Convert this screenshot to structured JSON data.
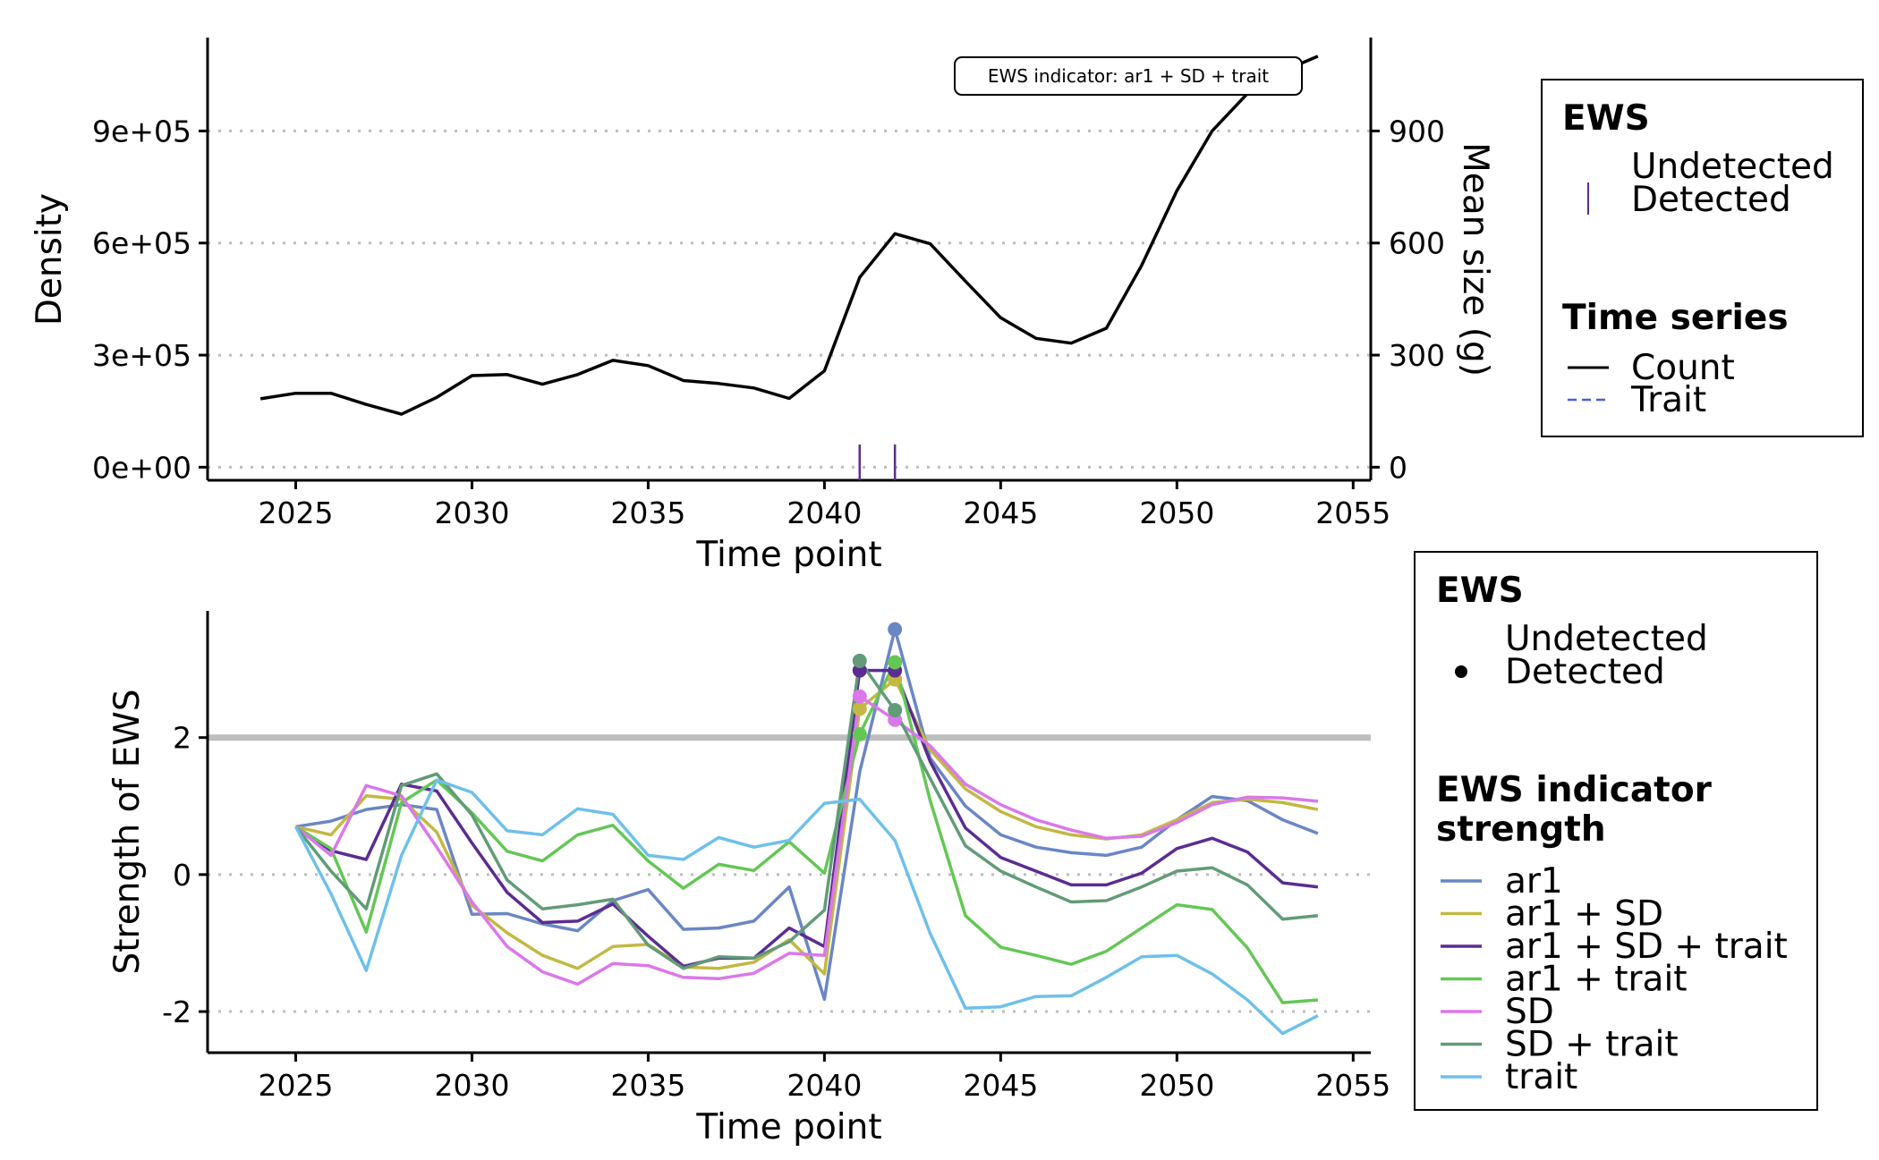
{
  "chart_data": [
    {
      "type": "line",
      "xlabel": "Time point",
      "ylabel": "Density",
      "ylabel_right": "Mean size (g)",
      "x_ticks": [
        2025,
        2030,
        2035,
        2040,
        2045,
        2050,
        2055
      ],
      "y_ticks": [
        "0e+00",
        "3e+05",
        "6e+05",
        "9e+05"
      ],
      "y_tick_values": [
        0,
        300000,
        600000,
        900000
      ],
      "y_right_ticks": [
        "0",
        "300",
        "600",
        "900"
      ],
      "xlim": [
        2022.5,
        2055.5
      ],
      "ylim": [
        -35000,
        1150000
      ],
      "annotation": "EWS indicator: ar1 + SD + trait",
      "series": [
        {
          "name": "Count",
          "color": "#000000",
          "x": [
            2024,
            2025,
            2026,
            2027,
            2028,
            2029,
            2030,
            2031,
            2032,
            2033,
            2034,
            2035,
            2036,
            2037,
            2038,
            2039,
            2040,
            2041,
            2042,
            2043,
            2044,
            2045,
            2046,
            2047,
            2048,
            2049,
            2050,
            2051,
            2052,
            2053,
            2054
          ],
          "values": [
            183000,
            198000,
            198000,
            168000,
            142000,
            187000,
            245000,
            248000,
            222000,
            248000,
            286000,
            272000,
            232000,
            224000,
            212000,
            184000,
            258000,
            508000,
            625000,
            598000,
            498000,
            400000,
            345000,
            332000,
            372000,
            540000,
            740000,
            900000,
            1000000,
            1060000,
            1100000
          ]
        }
      ],
      "detected_marks_x": [
        2041,
        2042
      ],
      "legend": [
        {
          "title": "EWS",
          "items": [
            "Undetected",
            "Detected"
          ]
        },
        {
          "title": "Time series",
          "items": [
            "Count",
            "Trait"
          ]
        }
      ]
    },
    {
      "type": "line",
      "xlabel": "Time point",
      "ylabel": "Strength of EWS",
      "x_ticks": [
        2025,
        2030,
        2035,
        2040,
        2045,
        2050,
        2055
      ],
      "y_ticks": [
        "-2",
        "0",
        "2"
      ],
      "y_tick_values": [
        -2,
        0,
        2
      ],
      "xlim": [
        2022.5,
        2055.5
      ],
      "ylim": [
        -2.6,
        3.85
      ],
      "threshold": 2,
      "x": [
        2025,
        2026,
        2027,
        2028,
        2029,
        2030,
        2031,
        2032,
        2033,
        2034,
        2035,
        2036,
        2037,
        2038,
        2039,
        2040,
        2041,
        2042,
        2043,
        2044,
        2045,
        2046,
        2047,
        2048,
        2049,
        2050,
        2051,
        2052,
        2053,
        2054
      ],
      "series": [
        {
          "name": "ar1",
          "color": "#6a86c4",
          "values": [
            0.7,
            0.78,
            0.95,
            1.02,
            0.95,
            -0.58,
            -0.57,
            -0.72,
            -0.82,
            -0.38,
            -0.22,
            -0.8,
            -0.78,
            -0.68,
            -0.18,
            -1.82,
            1.5,
            3.58,
            1.7,
            1.0,
            0.58,
            0.4,
            0.32,
            0.28,
            0.4,
            0.8,
            1.14,
            1.08,
            0.8,
            0.6
          ],
          "detected_x": [
            2042
          ]
        },
        {
          "name": "ar1 + SD",
          "color": "#c3b842",
          "values": [
            0.7,
            0.58,
            1.15,
            1.1,
            0.62,
            -0.45,
            -0.85,
            -1.18,
            -1.37,
            -1.05,
            -1.02,
            -1.35,
            -1.37,
            -1.28,
            -0.95,
            -1.45,
            2.42,
            2.85,
            1.82,
            1.25,
            0.92,
            0.7,
            0.58,
            0.52,
            0.58,
            0.8,
            1.05,
            1.1,
            1.05,
            0.95
          ],
          "detected_x": [
            2041,
            2042
          ]
        },
        {
          "name": "ar1 + SD + trait",
          "color": "#5b2c91",
          "values": [
            0.7,
            0.35,
            0.22,
            1.32,
            1.22,
            0.46,
            -0.26,
            -0.7,
            -0.68,
            -0.43,
            -0.9,
            -1.34,
            -1.22,
            -1.22,
            -0.78,
            -1.05,
            2.98,
            2.98,
            1.65,
            0.68,
            0.25,
            0.05,
            -0.15,
            -0.15,
            0.02,
            0.38,
            0.53,
            0.33,
            -0.12,
            -0.18
          ],
          "detected_x": [
            2041,
            2042
          ]
        },
        {
          "name": "ar1 + trait",
          "color": "#64c755",
          "values": [
            0.7,
            0.38,
            -0.84,
            1.05,
            1.38,
            0.9,
            0.34,
            0.2,
            0.58,
            0.72,
            0.2,
            -0.2,
            0.15,
            0.06,
            0.48,
            0.02,
            2.05,
            3.1,
            1.08,
            -0.6,
            -1.06,
            -1.18,
            -1.31,
            -1.12,
            -0.78,
            -0.44,
            -0.51,
            -1.07,
            -1.87,
            -1.83
          ],
          "detected_x": [
            2041,
            2042
          ]
        },
        {
          "name": "SD",
          "color": "#da78e9",
          "values": [
            0.7,
            0.28,
            1.3,
            1.15,
            0.4,
            -0.4,
            -1.05,
            -1.42,
            -1.6,
            -1.3,
            -1.33,
            -1.5,
            -1.52,
            -1.44,
            -1.15,
            -1.18,
            2.6,
            2.26,
            1.88,
            1.32,
            1.02,
            0.8,
            0.65,
            0.53,
            0.56,
            0.76,
            1.02,
            1.13,
            1.12,
            1.07
          ],
          "detected_x": [
            2041,
            2042
          ]
        },
        {
          "name": "SD + trait",
          "color": "#629b78",
          "values": [
            0.7,
            0.05,
            -0.5,
            1.3,
            1.47,
            0.87,
            -0.08,
            -0.5,
            -0.44,
            -0.36,
            -1.03,
            -1.37,
            -1.2,
            -1.22,
            -0.98,
            -0.52,
            3.12,
            2.4,
            1.4,
            0.42,
            0.05,
            -0.18,
            -0.4,
            -0.38,
            -0.18,
            0.05,
            0.1,
            -0.15,
            -0.65,
            -0.6
          ],
          "detected_x": [
            2041,
            2042
          ]
        },
        {
          "name": "trait",
          "color": "#6fc0ea",
          "values": [
            0.7,
            -0.28,
            -1.4,
            0.28,
            1.38,
            1.2,
            0.64,
            0.58,
            0.96,
            0.88,
            0.28,
            0.22,
            0.54,
            0.4,
            0.5,
            1.04,
            1.1,
            0.5,
            -0.86,
            -1.95,
            -1.93,
            -1.78,
            -1.77,
            -1.5,
            -1.2,
            -1.18,
            -1.45,
            -1.83,
            -2.32,
            -2.06
          ],
          "detected_x": []
        }
      ],
      "legend": [
        {
          "title": "EWS",
          "items": [
            "Undetected",
            "Detected"
          ]
        },
        {
          "title_lines": [
            "EWS indicator",
            "strength"
          ],
          "items": [
            "ar1",
            "ar1 + SD",
            "ar1 + SD + trait",
            "ar1 + trait",
            "SD",
            "SD + trait",
            "trait"
          ]
        }
      ]
    }
  ]
}
